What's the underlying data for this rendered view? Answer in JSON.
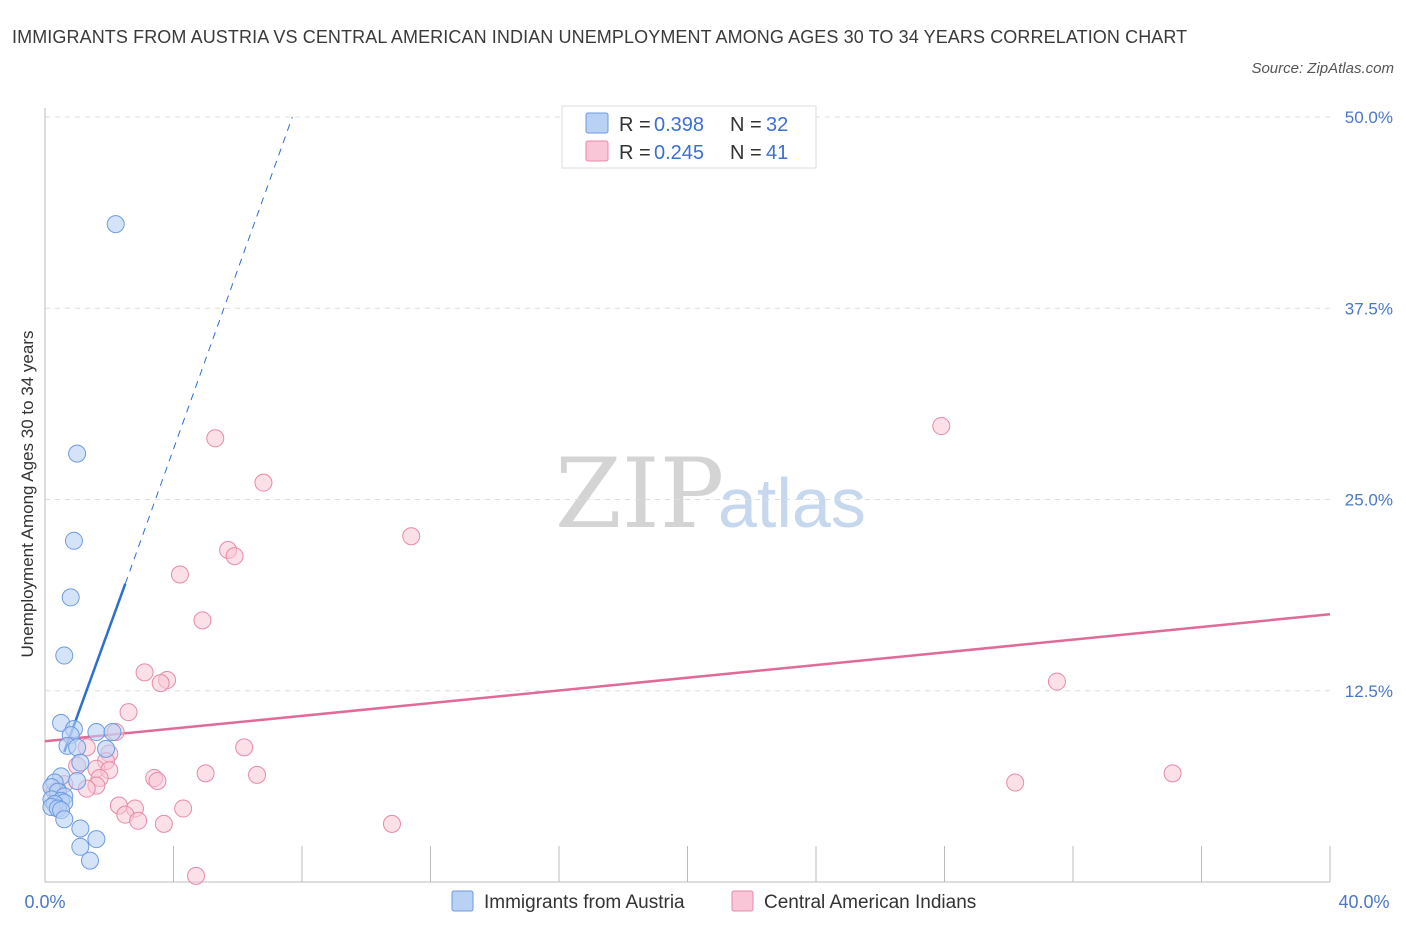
{
  "header": {
    "title": "IMMIGRANTS FROM AUSTRIA VS CENTRAL AMERICAN INDIAN UNEMPLOYMENT AMONG AGES 30 TO 34 YEARS CORRELATION CHART",
    "source": "Source: ZipAtlas.com"
  },
  "watermark": {
    "zip": "ZIP",
    "atlas": "atlas"
  },
  "legend_top": [
    {
      "r_label": "R =",
      "r_value": "0.398",
      "n_label": "N =",
      "n_value": "32"
    },
    {
      "r_label": "R =",
      "r_value": "0.245",
      "n_label": "N =",
      "n_value": "41"
    }
  ],
  "colors": {
    "blue_fill": "#b9d1f5",
    "blue_stroke": "#6d9be0",
    "blue_line": "#2d6fd0",
    "pink_fill": "#f8c6d6",
    "pink_stroke": "#e88aa8",
    "pink_line": "#e06a98",
    "grid": "#dddddd",
    "axis_text": "#4a78c8"
  },
  "chart_data": {
    "type": "scatter",
    "title": "IMMIGRANTS FROM AUSTRIA VS CENTRAL AMERICAN INDIAN UNEMPLOYMENT AMONG AGES 30 TO 34 YEARS CORRELATION CHART",
    "xlabel": "",
    "ylabel": "Unemployment Among Ages 30 to 34 years",
    "xlim": [
      0,
      40
    ],
    "ylim": [
      0,
      50
    ],
    "x_tick_labels": [
      "0.0%",
      "40.0%"
    ],
    "y_ticks": [
      12.5,
      25.0,
      37.5,
      50.0
    ],
    "y_tick_labels": [
      "12.5%",
      "25.0%",
      "37.5%",
      "50.0%"
    ],
    "grid": true,
    "series": [
      {
        "name": "Immigrants from Austria",
        "R": 0.398,
        "N": 32,
        "points": [
          [
            2.2,
            43.0
          ],
          [
            1.0,
            28.0
          ],
          [
            0.9,
            22.3
          ],
          [
            0.8,
            18.6
          ],
          [
            0.6,
            14.8
          ],
          [
            0.5,
            10.4
          ],
          [
            0.9,
            10.0
          ],
          [
            0.8,
            9.6
          ],
          [
            1.6,
            9.8
          ],
          [
            2.1,
            9.8
          ],
          [
            0.7,
            8.9
          ],
          [
            1.0,
            8.8
          ],
          [
            1.1,
            7.8
          ],
          [
            1.9,
            8.7
          ],
          [
            0.5,
            6.9
          ],
          [
            0.3,
            6.5
          ],
          [
            1.0,
            6.6
          ],
          [
            0.2,
            6.2
          ],
          [
            0.4,
            5.9
          ],
          [
            0.6,
            5.6
          ],
          [
            0.2,
            5.4
          ],
          [
            0.5,
            5.3
          ],
          [
            0.6,
            5.2
          ],
          [
            0.3,
            5.1
          ],
          [
            0.2,
            4.9
          ],
          [
            0.4,
            4.8
          ],
          [
            0.5,
            4.7
          ],
          [
            0.6,
            4.1
          ],
          [
            1.1,
            3.5
          ],
          [
            1.6,
            2.8
          ],
          [
            1.1,
            2.3
          ],
          [
            1.4,
            1.4
          ]
        ],
        "trend": {
          "x": [
            0.6,
            2.5
          ],
          "y": [
            8.5,
            19.5
          ]
        },
        "trend_extension": {
          "x": [
            2.5,
            7.7
          ],
          "y": [
            19.5,
            50.0
          ]
        }
      },
      {
        "name": "Central American Indians",
        "R": 0.245,
        "N": 41,
        "points": [
          [
            5.3,
            29.0
          ],
          [
            6.8,
            26.1
          ],
          [
            11.4,
            22.6
          ],
          [
            5.7,
            21.7
          ],
          [
            5.9,
            21.3
          ],
          [
            4.2,
            20.1
          ],
          [
            4.9,
            17.1
          ],
          [
            3.1,
            13.7
          ],
          [
            3.8,
            13.2
          ],
          [
            3.6,
            13.0
          ],
          [
            2.6,
            11.1
          ],
          [
            2.2,
            9.8
          ],
          [
            6.2,
            8.8
          ],
          [
            1.3,
            8.8
          ],
          [
            2.0,
            8.4
          ],
          [
            1.9,
            7.9
          ],
          [
            1.0,
            7.6
          ],
          [
            1.6,
            7.4
          ],
          [
            2.0,
            7.3
          ],
          [
            5.0,
            7.1
          ],
          [
            6.6,
            7.0
          ],
          [
            1.7,
            6.8
          ],
          [
            3.4,
            6.8
          ],
          [
            3.5,
            6.6
          ],
          [
            1.6,
            6.3
          ],
          [
            1.3,
            6.1
          ],
          [
            0.6,
            6.4
          ],
          [
            0.4,
            6.0
          ],
          [
            0.3,
            5.9
          ],
          [
            2.3,
            5.0
          ],
          [
            2.8,
            4.8
          ],
          [
            4.3,
            4.8
          ],
          [
            2.5,
            4.4
          ],
          [
            2.9,
            4.0
          ],
          [
            3.7,
            3.8
          ],
          [
            10.8,
            3.8
          ],
          [
            4.7,
            0.4
          ],
          [
            27.9,
            29.8
          ],
          [
            31.5,
            13.1
          ],
          [
            30.2,
            6.5
          ],
          [
            35.1,
            7.1
          ]
        ],
        "trend": {
          "x": [
            0.0,
            40.0
          ],
          "y": [
            9.2,
            17.5
          ]
        }
      }
    ]
  }
}
